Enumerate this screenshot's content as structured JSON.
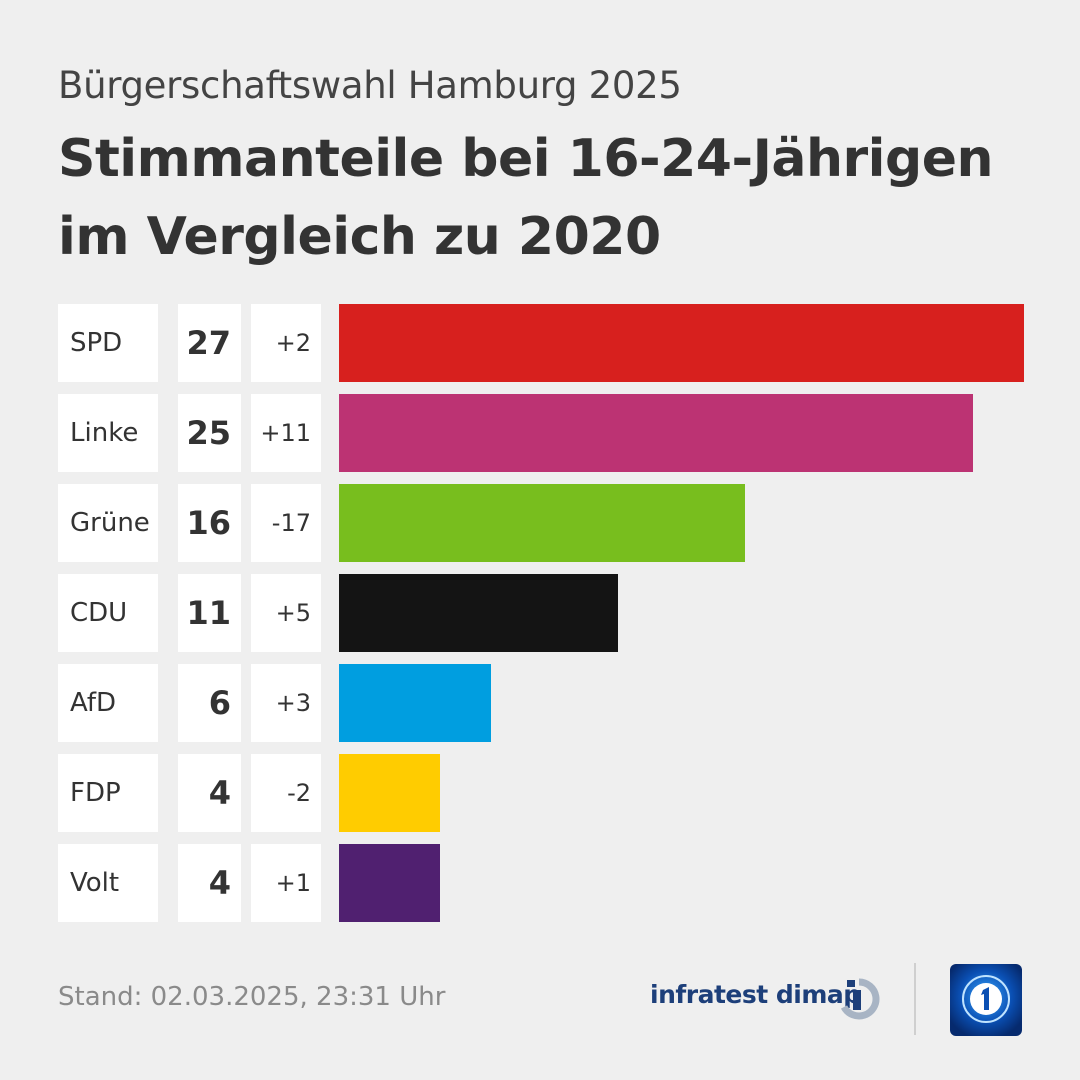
{
  "header": {
    "subtitle": "Bürgerschaftswahl Hamburg 2025",
    "title": "Stimmanteile bei 16-24-Jährigen im Vergleich zu 2020"
  },
  "chart_data": {
    "type": "bar",
    "categories": [
      "SPD",
      "Linke",
      "Grüne",
      "CDU",
      "AfD",
      "FDP",
      "Volt"
    ],
    "values": [
      27,
      25,
      16,
      11,
      6,
      4,
      4
    ],
    "diffs": [
      "+2",
      "+11",
      "-17",
      "+5",
      "+3",
      "-2",
      "+1"
    ],
    "colors": [
      "#d7201e",
      "#bc3373",
      "#78be1e",
      "#141414",
      "#009ee0",
      "#ffcc00",
      "#502070"
    ],
    "title": "Stimmanteile bei 16-24-Jährigen im Vergleich zu 2020",
    "subtitle": "Bürgerschaftswahl Hamburg 2025",
    "xlabel": "",
    "ylabel": "",
    "orientation": "horizontal",
    "grid": false
  },
  "footer": {
    "stand": "Stand:  02.03.2025, 23:31 Uhr",
    "brand": "infratest dimap"
  }
}
